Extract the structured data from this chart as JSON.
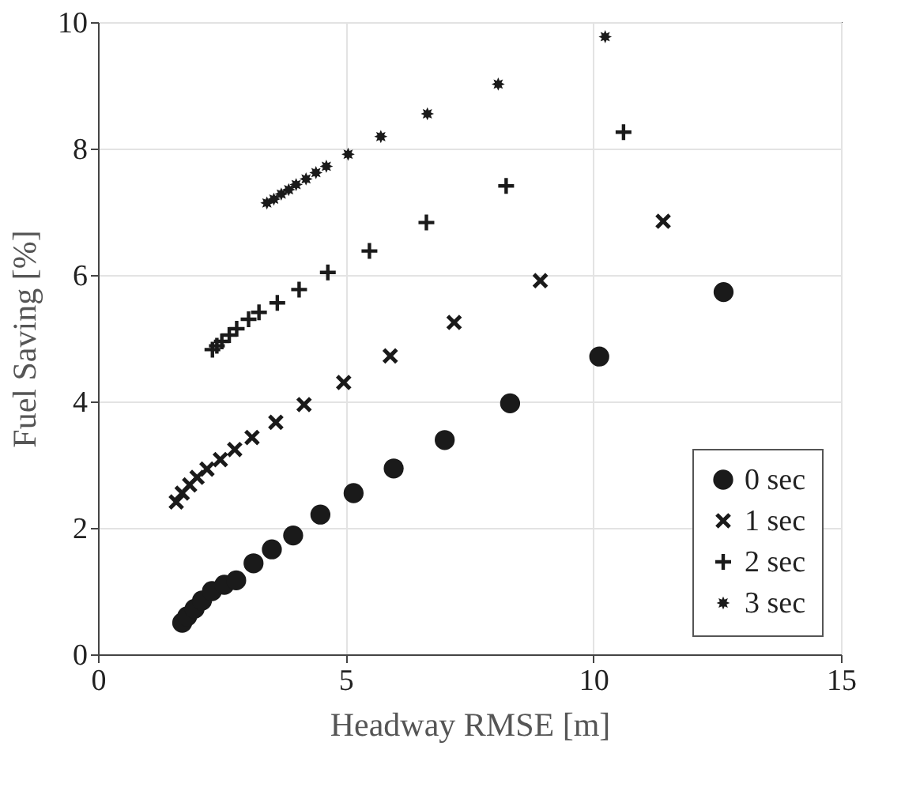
{
  "chart_data": {
    "type": "scatter",
    "xlabel": "Headway RMSE [m]",
    "ylabel": "Fuel Saving [%]",
    "xlim": [
      0,
      15
    ],
    "xticks": [
      0,
      5,
      10,
      15
    ],
    "ylim": [
      0,
      10
    ],
    "yticks": [
      0,
      2,
      4,
      6,
      8,
      10
    ],
    "grid": true,
    "legend": "bottom right",
    "series": [
      {
        "name": "0 sec",
        "color": "#1a1a1a",
        "marker": "circle",
        "x": [
          1.7,
          1.8,
          1.95,
          2.1,
          2.3,
          2.55,
          2.79,
          3.14,
          3.51,
          3.94,
          4.49,
          5.16,
          5.97,
          7.0,
          8.32,
          10.12,
          12.63
        ],
        "values": [
          0.5,
          0.6,
          0.72,
          0.85,
          1.0,
          1.1,
          1.17,
          1.44,
          1.66,
          1.88,
          2.21,
          2.55,
          2.94,
          3.39,
          3.97,
          4.71,
          5.73
        ]
      },
      {
        "name": "1 sec",
        "color": "#1a1a1a",
        "marker": "cross",
        "x": [
          1.58,
          1.7,
          1.85,
          2.0,
          2.2,
          2.47,
          2.76,
          3.11,
          3.59,
          4.16,
          4.96,
          5.9,
          7.19,
          8.93,
          11.41
        ],
        "values": [
          2.41,
          2.55,
          2.68,
          2.8,
          2.93,
          3.08,
          3.24,
          3.43,
          3.67,
          3.95,
          4.3,
          4.72,
          5.25,
          5.91,
          6.85
        ]
      },
      {
        "name": "2 sec",
        "color": "#1a1a1a",
        "marker": "plus",
        "x": [
          2.31,
          2.4,
          2.5,
          2.65,
          2.8,
          3.04,
          3.25,
          3.62,
          4.06,
          4.64,
          5.48,
          6.63,
          8.24,
          10.61
        ],
        "values": [
          4.82,
          4.88,
          4.95,
          5.05,
          5.15,
          5.3,
          5.41,
          5.56,
          5.77,
          6.04,
          6.38,
          6.83,
          7.41,
          8.26
        ]
      },
      {
        "name": "3 sec",
        "color": "#1a1a1a",
        "marker": "star",
        "x": [
          3.41,
          3.55,
          3.7,
          3.85,
          4.0,
          4.2,
          4.4,
          4.61,
          5.05,
          5.71,
          6.65,
          8.08,
          10.24
        ],
        "values": [
          7.14,
          7.2,
          7.28,
          7.35,
          7.43,
          7.52,
          7.62,
          7.72,
          7.91,
          8.19,
          8.55,
          9.02,
          9.77
        ]
      }
    ]
  }
}
